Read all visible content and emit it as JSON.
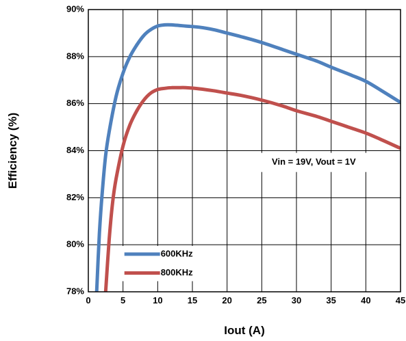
{
  "chart_data": {
    "type": "line",
    "title": "",
    "xlabel": "Iout (A)",
    "ylabel": "Efficiency (%)",
    "xlim": [
      0,
      45
    ],
    "ylim": [
      78,
      90
    ],
    "x_ticks": [
      0,
      5,
      10,
      15,
      20,
      25,
      30,
      35,
      40,
      45
    ],
    "x_tick_labels": [
      "0",
      "5",
      "10",
      "15",
      "20",
      "25",
      "30",
      "35",
      "40",
      "45"
    ],
    "y_ticks": [
      78,
      80,
      82,
      84,
      86,
      88,
      90
    ],
    "y_tick_labels": [
      "78%",
      "80%",
      "82%",
      "84%",
      "86%",
      "88%",
      "90%"
    ],
    "grid": true,
    "legend_position": "bottom-left",
    "annotation": "Vin = 19V, Vout = 1V",
    "series": [
      {
        "name": "600KHz",
        "color": "#4F81BD",
        "x": [
          1.2,
          1.6,
          2.0,
          2.5,
          3.0,
          4.0,
          5.0,
          6.0,
          7.0,
          8.0,
          9.0,
          10.0,
          11.0,
          12.0,
          14.0,
          16.0,
          18.0,
          20.0,
          22.0,
          25.0,
          28.0,
          30.0,
          33.0,
          35.0,
          38.0,
          40.0,
          42.0,
          45.0
        ],
        "values": [
          78.0,
          80.5,
          82.2,
          83.8,
          84.8,
          86.3,
          87.3,
          88.0,
          88.5,
          88.9,
          89.15,
          89.3,
          89.35,
          89.35,
          89.3,
          89.25,
          89.15,
          89.0,
          88.85,
          88.6,
          88.3,
          88.1,
          87.8,
          87.55,
          87.2,
          86.95,
          86.6,
          86.05
        ]
      },
      {
        "name": "800KHz",
        "color": "#C0504D",
        "x": [
          2.5,
          3.0,
          3.5,
          4.0,
          5.0,
          6.0,
          7.0,
          8.0,
          9.0,
          10.0,
          11.0,
          12.0,
          13.0,
          14.0,
          16.0,
          18.0,
          20.0,
          22.0,
          25.0,
          28.0,
          30.0,
          33.0,
          35.0,
          38.0,
          40.0,
          42.0,
          45.0
        ],
        "values": [
          78.0,
          80.2,
          81.8,
          82.8,
          84.2,
          85.1,
          85.7,
          86.15,
          86.45,
          86.6,
          86.65,
          86.68,
          86.68,
          86.68,
          86.63,
          86.55,
          86.45,
          86.35,
          86.15,
          85.9,
          85.7,
          85.45,
          85.25,
          84.95,
          84.75,
          84.5,
          84.1
        ]
      }
    ]
  }
}
